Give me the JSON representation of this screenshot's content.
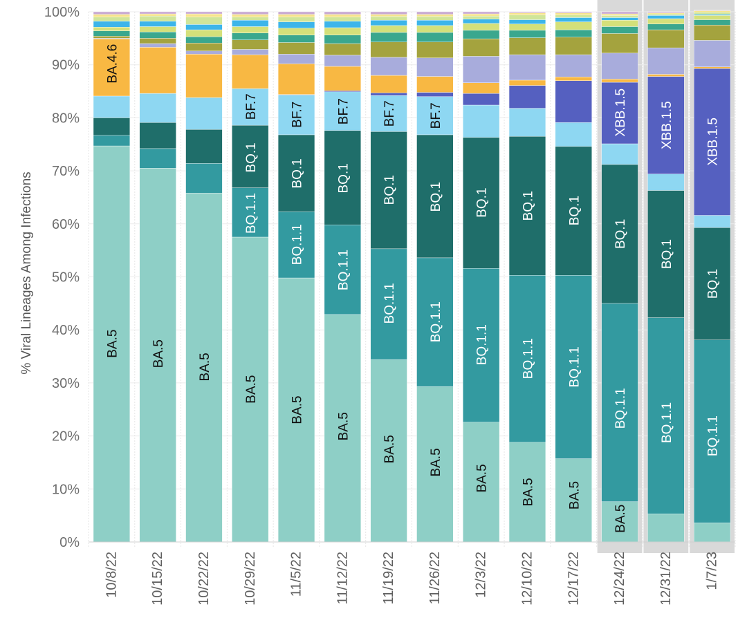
{
  "chart_data": {
    "type": "bar",
    "stacked": true,
    "ylabel": "% Viral Lineages Among Infections",
    "xlabel": "",
    "ylim": [
      0,
      100
    ],
    "yticks": [
      "0%",
      "10%",
      "20%",
      "30%",
      "40%",
      "50%",
      "60%",
      "70%",
      "80%",
      "90%",
      "100%"
    ],
    "grid": true,
    "legend": "none",
    "highlighted_categories": [
      "12/24/22",
      "12/31/22",
      "1/7/23"
    ],
    "categories": [
      "10/8/22",
      "10/15/22",
      "10/22/22",
      "10/29/22",
      "11/5/22",
      "11/12/22",
      "11/19/22",
      "11/26/22",
      "12/3/22",
      "12/10/22",
      "12/17/22",
      "12/24/22",
      "12/31/22",
      "1/7/23"
    ],
    "series": [
      {
        "name": "BA.5",
        "color": "#8ecfc6",
        "values": [
          74.7,
          70.5,
          65.8,
          57.5,
          49.8,
          42.9,
          34.4,
          29.3,
          22.6,
          18.8,
          15.7,
          7.6,
          5.3,
          3.6
        ]
      },
      {
        "name": "BQ.1.1",
        "color": "#339aa0",
        "values": [
          2.0,
          3.7,
          5.6,
          9.3,
          12.5,
          16.9,
          20.9,
          24.3,
          29.0,
          31.5,
          34.6,
          37.4,
          37.0,
          34.5
        ]
      },
      {
        "name": "BQ.1",
        "color": "#1f6e6a",
        "values": [
          3.3,
          4.9,
          6.4,
          11.8,
          14.5,
          17.8,
          22.1,
          23.2,
          24.7,
          26.2,
          24.3,
          26.2,
          24.0,
          21.2
        ]
      },
      {
        "name": "BF.7",
        "color": "#8ed7f2",
        "values": [
          4.1,
          5.5,
          6.0,
          6.9,
          7.5,
          7.3,
          6.8,
          7.2,
          6.1,
          5.3,
          4.5,
          3.9,
          3.1,
          2.3
        ]
      },
      {
        "name": "XBB.1.5",
        "color": "#5560c0",
        "values": [
          0,
          0,
          0,
          0,
          0.1,
          0.2,
          0.5,
          0.8,
          2.2,
          4.3,
          7.9,
          11.6,
          18.4,
          27.7
        ]
      },
      {
        "name": "BA.4.6",
        "color": "#f8b843",
        "values": [
          10.8,
          8.7,
          8.2,
          6.4,
          5.8,
          4.6,
          3.3,
          3.0,
          2.0,
          1.0,
          0.7,
          0.6,
          0.4,
          0.3
        ]
      },
      {
        "name": "",
        "color": "#a8acdc",
        "values": [
          0.1,
          0.7,
          0.6,
          1.0,
          1.8,
          2.1,
          3.4,
          3.5,
          5.0,
          4.8,
          4.2,
          4.9,
          5.0,
          5.0
        ]
      },
      {
        "name": "",
        "color": "#a4a33e",
        "values": [
          0.4,
          1.0,
          1.5,
          1.8,
          2.2,
          2.2,
          2.9,
          3.0,
          3.3,
          3.2,
          3.3,
          3.7,
          3.4,
          2.9
        ]
      },
      {
        "name": "",
        "color": "#3aa78e",
        "values": [
          1.0,
          1.2,
          1.2,
          1.3,
          1.4,
          1.6,
          1.8,
          1.8,
          1.6,
          1.4,
          1.4,
          1.3,
          1.1,
          1.0
        ]
      },
      {
        "name": "",
        "color": "#d4e07a",
        "values": [
          0.7,
          1.0,
          1.3,
          1.2,
          1.3,
          1.4,
          1.3,
          1.3,
          1.3,
          1.2,
          1.5,
          1.2,
          1.0,
          0.8
        ]
      },
      {
        "name": "",
        "color": "#3cb5ea",
        "values": [
          1.1,
          1.0,
          1.0,
          1.2,
          1.2,
          1.2,
          1.0,
          1.0,
          0.8,
          0.8,
          0.8,
          0.5,
          0.6,
          0.2
        ]
      },
      {
        "name": "",
        "color": "#d0e59a",
        "values": [
          0.8,
          1.0,
          1.4,
          0.6,
          0.9,
          0.8,
          0.7,
          0.7,
          0.6,
          0.9,
          0.5,
          0.4,
          0.3,
          0.4
        ]
      },
      {
        "name": "",
        "color": "#f6e48a",
        "values": [
          0.5,
          0.4,
          0.6,
          0.5,
          0.5,
          0.5,
          0.4,
          0.4,
          0.4,
          0.4,
          0.4,
          0.3,
          0.2,
          0.3
        ]
      },
      {
        "name": "",
        "color": "#c9a9d2",
        "values": [
          0.5,
          0.4,
          0.4,
          0.5,
          0.5,
          0.5,
          0.5,
          0.5,
          0.4,
          0.2,
          0.2,
          0.4,
          0.2,
          0.1
        ]
      }
    ],
    "annotations": [
      {
        "text": "BA.5",
        "category": 0,
        "y": 37.4,
        "color": "#111111"
      },
      {
        "text": "BA.5",
        "category": 1,
        "y": 35.5,
        "color": "#111111"
      },
      {
        "text": "BA.5",
        "category": 2,
        "y": 33,
        "color": "#111111"
      },
      {
        "text": "BA.5",
        "category": 3,
        "y": 28.8,
        "color": "#111111"
      },
      {
        "text": "BA.5",
        "category": 4,
        "y": 24.9,
        "color": "#111111"
      },
      {
        "text": "BA.5",
        "category": 5,
        "y": 21.8,
        "color": "#111111"
      },
      {
        "text": "BA.5",
        "category": 6,
        "y": 17.5,
        "color": "#111111"
      },
      {
        "text": "BA.5",
        "category": 7,
        "y": 15,
        "color": "#111111"
      },
      {
        "text": "BA.5",
        "category": 8,
        "y": 12,
        "color": "#111111"
      },
      {
        "text": "BA.5",
        "category": 9,
        "y": 9.4,
        "color": "#111111"
      },
      {
        "text": "BA.5",
        "category": 10,
        "y": 8.8,
        "color": "#111111"
      },
      {
        "text": "BA.5",
        "category": 11,
        "y": 4.4,
        "color": "#111111"
      },
      {
        "text": "BA.4.6",
        "category": 0,
        "y": 90.2,
        "color": "#111111"
      },
      {
        "text": "BQ.1.1",
        "category": 3,
        "y": 62,
        "color": "#ffffff"
      },
      {
        "text": "BQ.1.1",
        "category": 4,
        "y": 56.1,
        "color": "#ffffff"
      },
      {
        "text": "BQ.1.1",
        "category": 5,
        "y": 51.3,
        "color": "#ffffff"
      },
      {
        "text": "BQ.1.1",
        "category": 6,
        "y": 45,
        "color": "#ffffff"
      },
      {
        "text": "BQ.1.1",
        "category": 7,
        "y": 41.5,
        "color": "#ffffff"
      },
      {
        "text": "BQ.1.1",
        "category": 8,
        "y": 37.2,
        "color": "#ffffff"
      },
      {
        "text": "BQ.1.1",
        "category": 9,
        "y": 34.6,
        "color": "#ffffff"
      },
      {
        "text": "BQ.1.1",
        "category": 10,
        "y": 33,
        "color": "#ffffff"
      },
      {
        "text": "BQ.1.1",
        "category": 11,
        "y": 25.2,
        "color": "#ffffff"
      },
      {
        "text": "BQ.1.1",
        "category": 12,
        "y": 22.5,
        "color": "#ffffff"
      },
      {
        "text": "BQ.1.1",
        "category": 13,
        "y": 20,
        "color": "#ffffff"
      },
      {
        "text": "BQ.1",
        "category": 3,
        "y": 72.5,
        "color": "#ffffff"
      },
      {
        "text": "BQ.1",
        "category": 4,
        "y": 69.5,
        "color": "#ffffff"
      },
      {
        "text": "BQ.1",
        "category": 5,
        "y": 68.6,
        "color": "#ffffff"
      },
      {
        "text": "BQ.1",
        "category": 6,
        "y": 66.4,
        "color": "#ffffff"
      },
      {
        "text": "BQ.1",
        "category": 7,
        "y": 65.1,
        "color": "#ffffff"
      },
      {
        "text": "BQ.1",
        "category": 8,
        "y": 64,
        "color": "#ffffff"
      },
      {
        "text": "BQ.1",
        "category": 9,
        "y": 63.4,
        "color": "#ffffff"
      },
      {
        "text": "BQ.1",
        "category": 10,
        "y": 62.5,
        "color": "#ffffff"
      },
      {
        "text": "BQ.1",
        "category": 11,
        "y": 58.1,
        "color": "#ffffff"
      },
      {
        "text": "BQ.1",
        "category": 12,
        "y": 54.3,
        "color": "#ffffff"
      },
      {
        "text": "BQ.1",
        "category": 13,
        "y": 48.7,
        "color": "#ffffff"
      },
      {
        "text": "BF.7",
        "category": 3,
        "y": 82.1,
        "color": "#111111"
      },
      {
        "text": "BF.7",
        "category": 4,
        "y": 80.6,
        "color": "#111111"
      },
      {
        "text": "BF.7",
        "category": 5,
        "y": 81.2,
        "color": "#111111"
      },
      {
        "text": "BF.7",
        "category": 6,
        "y": 80.8,
        "color": "#111111"
      },
      {
        "text": "BF.7",
        "category": 7,
        "y": 80.4,
        "color": "#111111"
      },
      {
        "text": "XBB.1.5",
        "category": 11,
        "y": 81,
        "color": "#ffffff"
      },
      {
        "text": "XBB.1.5",
        "category": 12,
        "y": 78.6,
        "color": "#ffffff"
      },
      {
        "text": "XBB.1.5",
        "category": 13,
        "y": 75.5,
        "color": "#ffffff"
      }
    ]
  }
}
